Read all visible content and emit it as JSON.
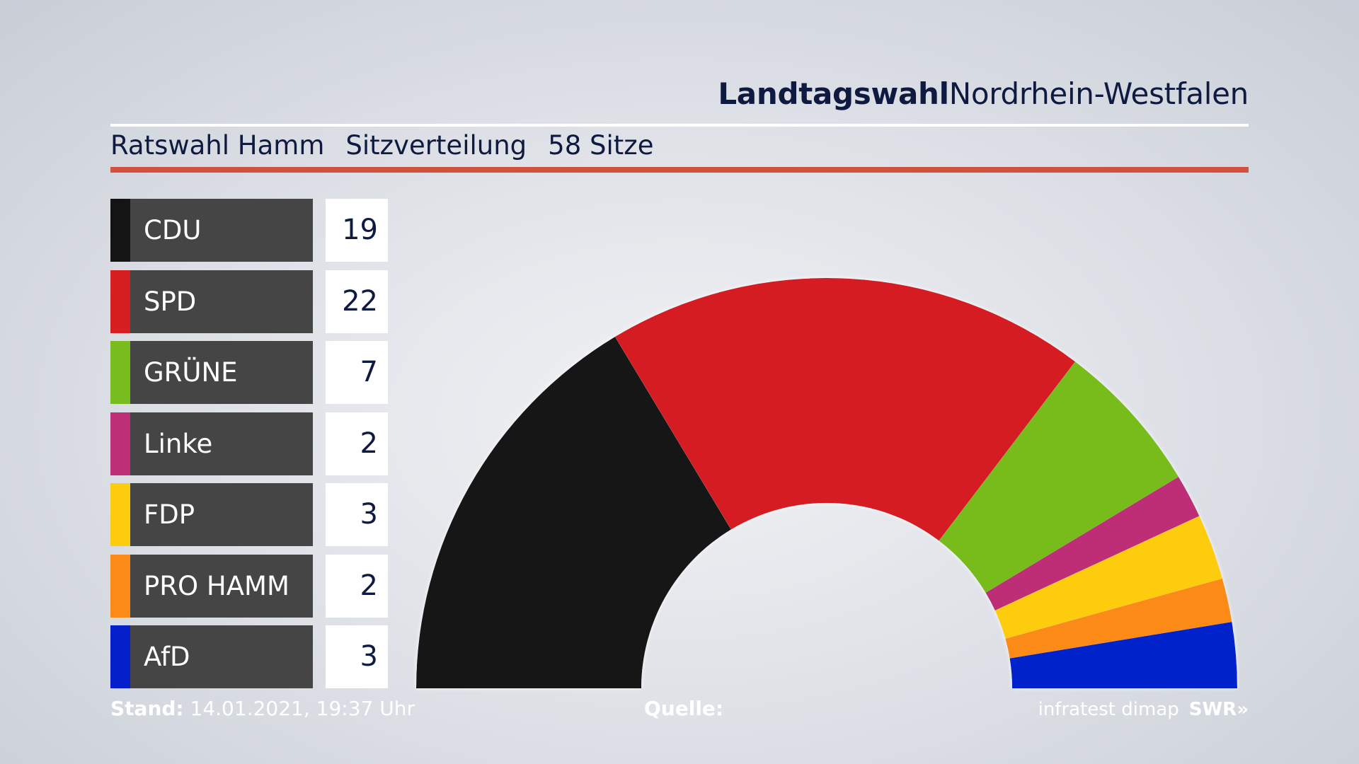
{
  "header": {
    "title_bold": "Landtagswahl",
    "title_regular": "Nordrhein-Westfalen"
  },
  "subtitle": {
    "election": "Ratswahl Hamm",
    "topic": "Sitzverteilung",
    "total": "58 Sitze"
  },
  "colors": {
    "accent_line": "#d2513d",
    "label_box": "#454545",
    "text_dark": "#0f1a40"
  },
  "chart_data": {
    "type": "pie",
    "subtype": "half-donut (parliament seat distribution)",
    "total_seats": 58,
    "categories": [
      "CDU",
      "SPD",
      "GRÜNE",
      "Linke",
      "FDP",
      "PRO HAMM",
      "AfD"
    ],
    "values": [
      19,
      22,
      7,
      2,
      3,
      2,
      3
    ],
    "colors": [
      "#141414",
      "#d51f20",
      "#78bc1e",
      "#bd2f76",
      "#fdcc0f",
      "#fc8a18",
      "#0520ca"
    ],
    "value_labels": [
      "19",
      "22",
      "7",
      "2",
      "3",
      "2",
      "3"
    ]
  },
  "footer": {
    "stand_label": "Stand:",
    "stand_value": "14.01.2021, 19:37 Uhr",
    "quelle_label": "Quelle:",
    "source": "infratest dimap",
    "broadcaster": "SWR»"
  }
}
